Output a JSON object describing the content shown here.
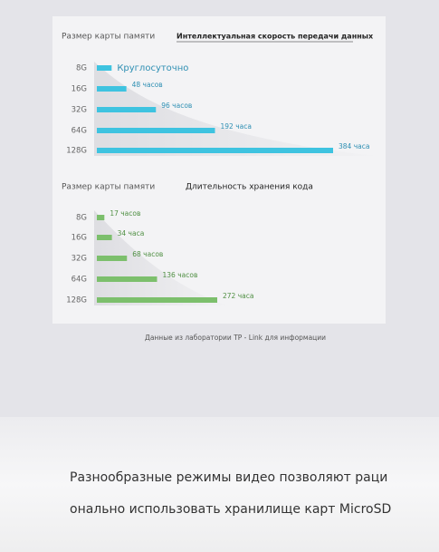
{
  "chart_data": [
    {
      "type": "bar",
      "orientation": "horizontal",
      "axis_label": "Размер карты памяти",
      "title": "Интеллектуальная скорость передачи данных",
      "categories": [
        "8G",
        "16G",
        "32G",
        "64G",
        "128G"
      ],
      "values": [
        24,
        48,
        96,
        192,
        384
      ],
      "value_labels": [
        "Круглосуточно",
        "48 часов",
        "96 часов",
        "192 часа",
        "384 часа"
      ],
      "color": "#3ec3e0"
    },
    {
      "type": "bar",
      "orientation": "horizontal",
      "axis_label": "Размер карты памяти",
      "title": "Длительность хранения кода",
      "categories": [
        "8G",
        "16G",
        "32G",
        "64G",
        "128G"
      ],
      "values": [
        17,
        34,
        68,
        136,
        272
      ],
      "value_labels": [
        "17 часов",
        "34 часа",
        "68 часов",
        "136 часов",
        "272 часа"
      ],
      "color": "#7cbf6c"
    }
  ],
  "footnote": "Данные из лаборатории TP - Link для информации",
  "caption": [
    "Разнообразные режимы видео позволяют раци",
    "онально использовать хранилище карт MicroSD"
  ]
}
